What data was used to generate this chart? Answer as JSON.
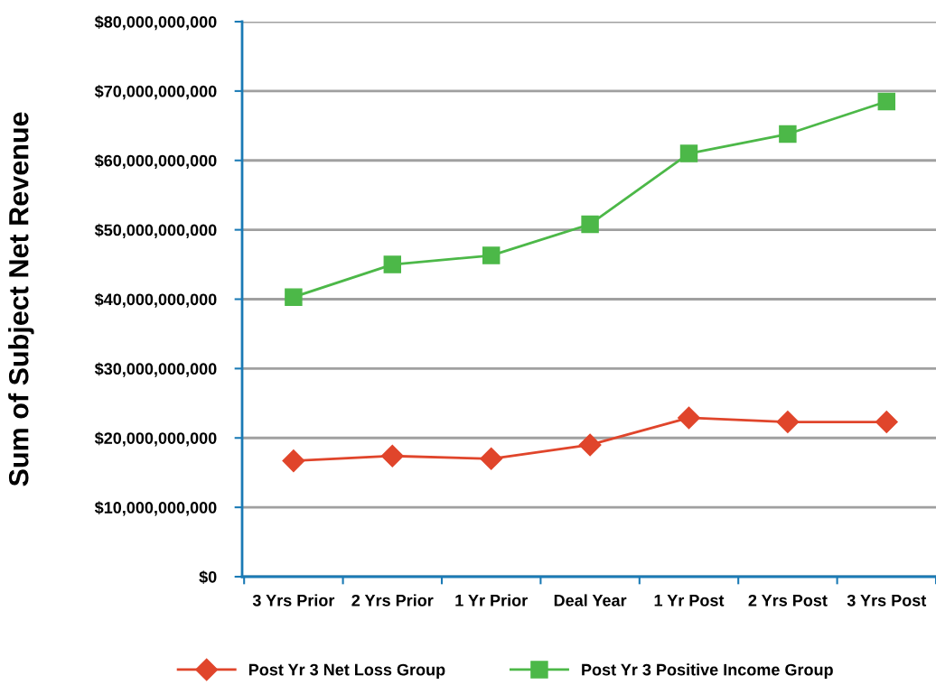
{
  "chart_data": {
    "type": "line",
    "ylabel": "Sum of Subject Net Revenue",
    "categories": [
      "3 Yrs Prior",
      "2 Yrs Prior",
      "1 Yr Prior",
      "Deal Year",
      "1 Yr Post",
      "2 Yrs Post",
      "3 Yrs Post"
    ],
    "series": [
      {
        "name": "Post Yr 3 Net Loss Group",
        "color": "#e0452b",
        "marker": "diamond",
        "values": [
          16700000000,
          17400000000,
          17000000000,
          19000000000,
          22900000000,
          22300000000,
          22300000000
        ]
      },
      {
        "name": "Post Yr 3 Positive Income Group",
        "color": "#4cb848",
        "marker": "square",
        "values": [
          40300000000,
          45000000000,
          46300000000,
          50800000000,
          61000000000,
          63800000000,
          68500000000
        ]
      }
    ],
    "ylim": [
      0,
      80000000000
    ],
    "yticks": [
      {
        "value": 0,
        "label": "$0"
      },
      {
        "value": 10000000000,
        "label": "$10,000,000,000"
      },
      {
        "value": 20000000000,
        "label": "$20,000,000,000"
      },
      {
        "value": 30000000000,
        "label": "$30,000,000,000"
      },
      {
        "value": 40000000000,
        "label": "$40,000,000,000"
      },
      {
        "value": 50000000000,
        "label": "$50,000,000,000"
      },
      {
        "value": 60000000000,
        "label": "$60,000,000,000"
      },
      {
        "value": 70000000000,
        "label": "$70,000,000,000"
      },
      {
        "value": 80000000000,
        "label": "$80,000,000,000"
      }
    ],
    "grid": "y",
    "legend": "bottom",
    "line_style": "solid"
  }
}
